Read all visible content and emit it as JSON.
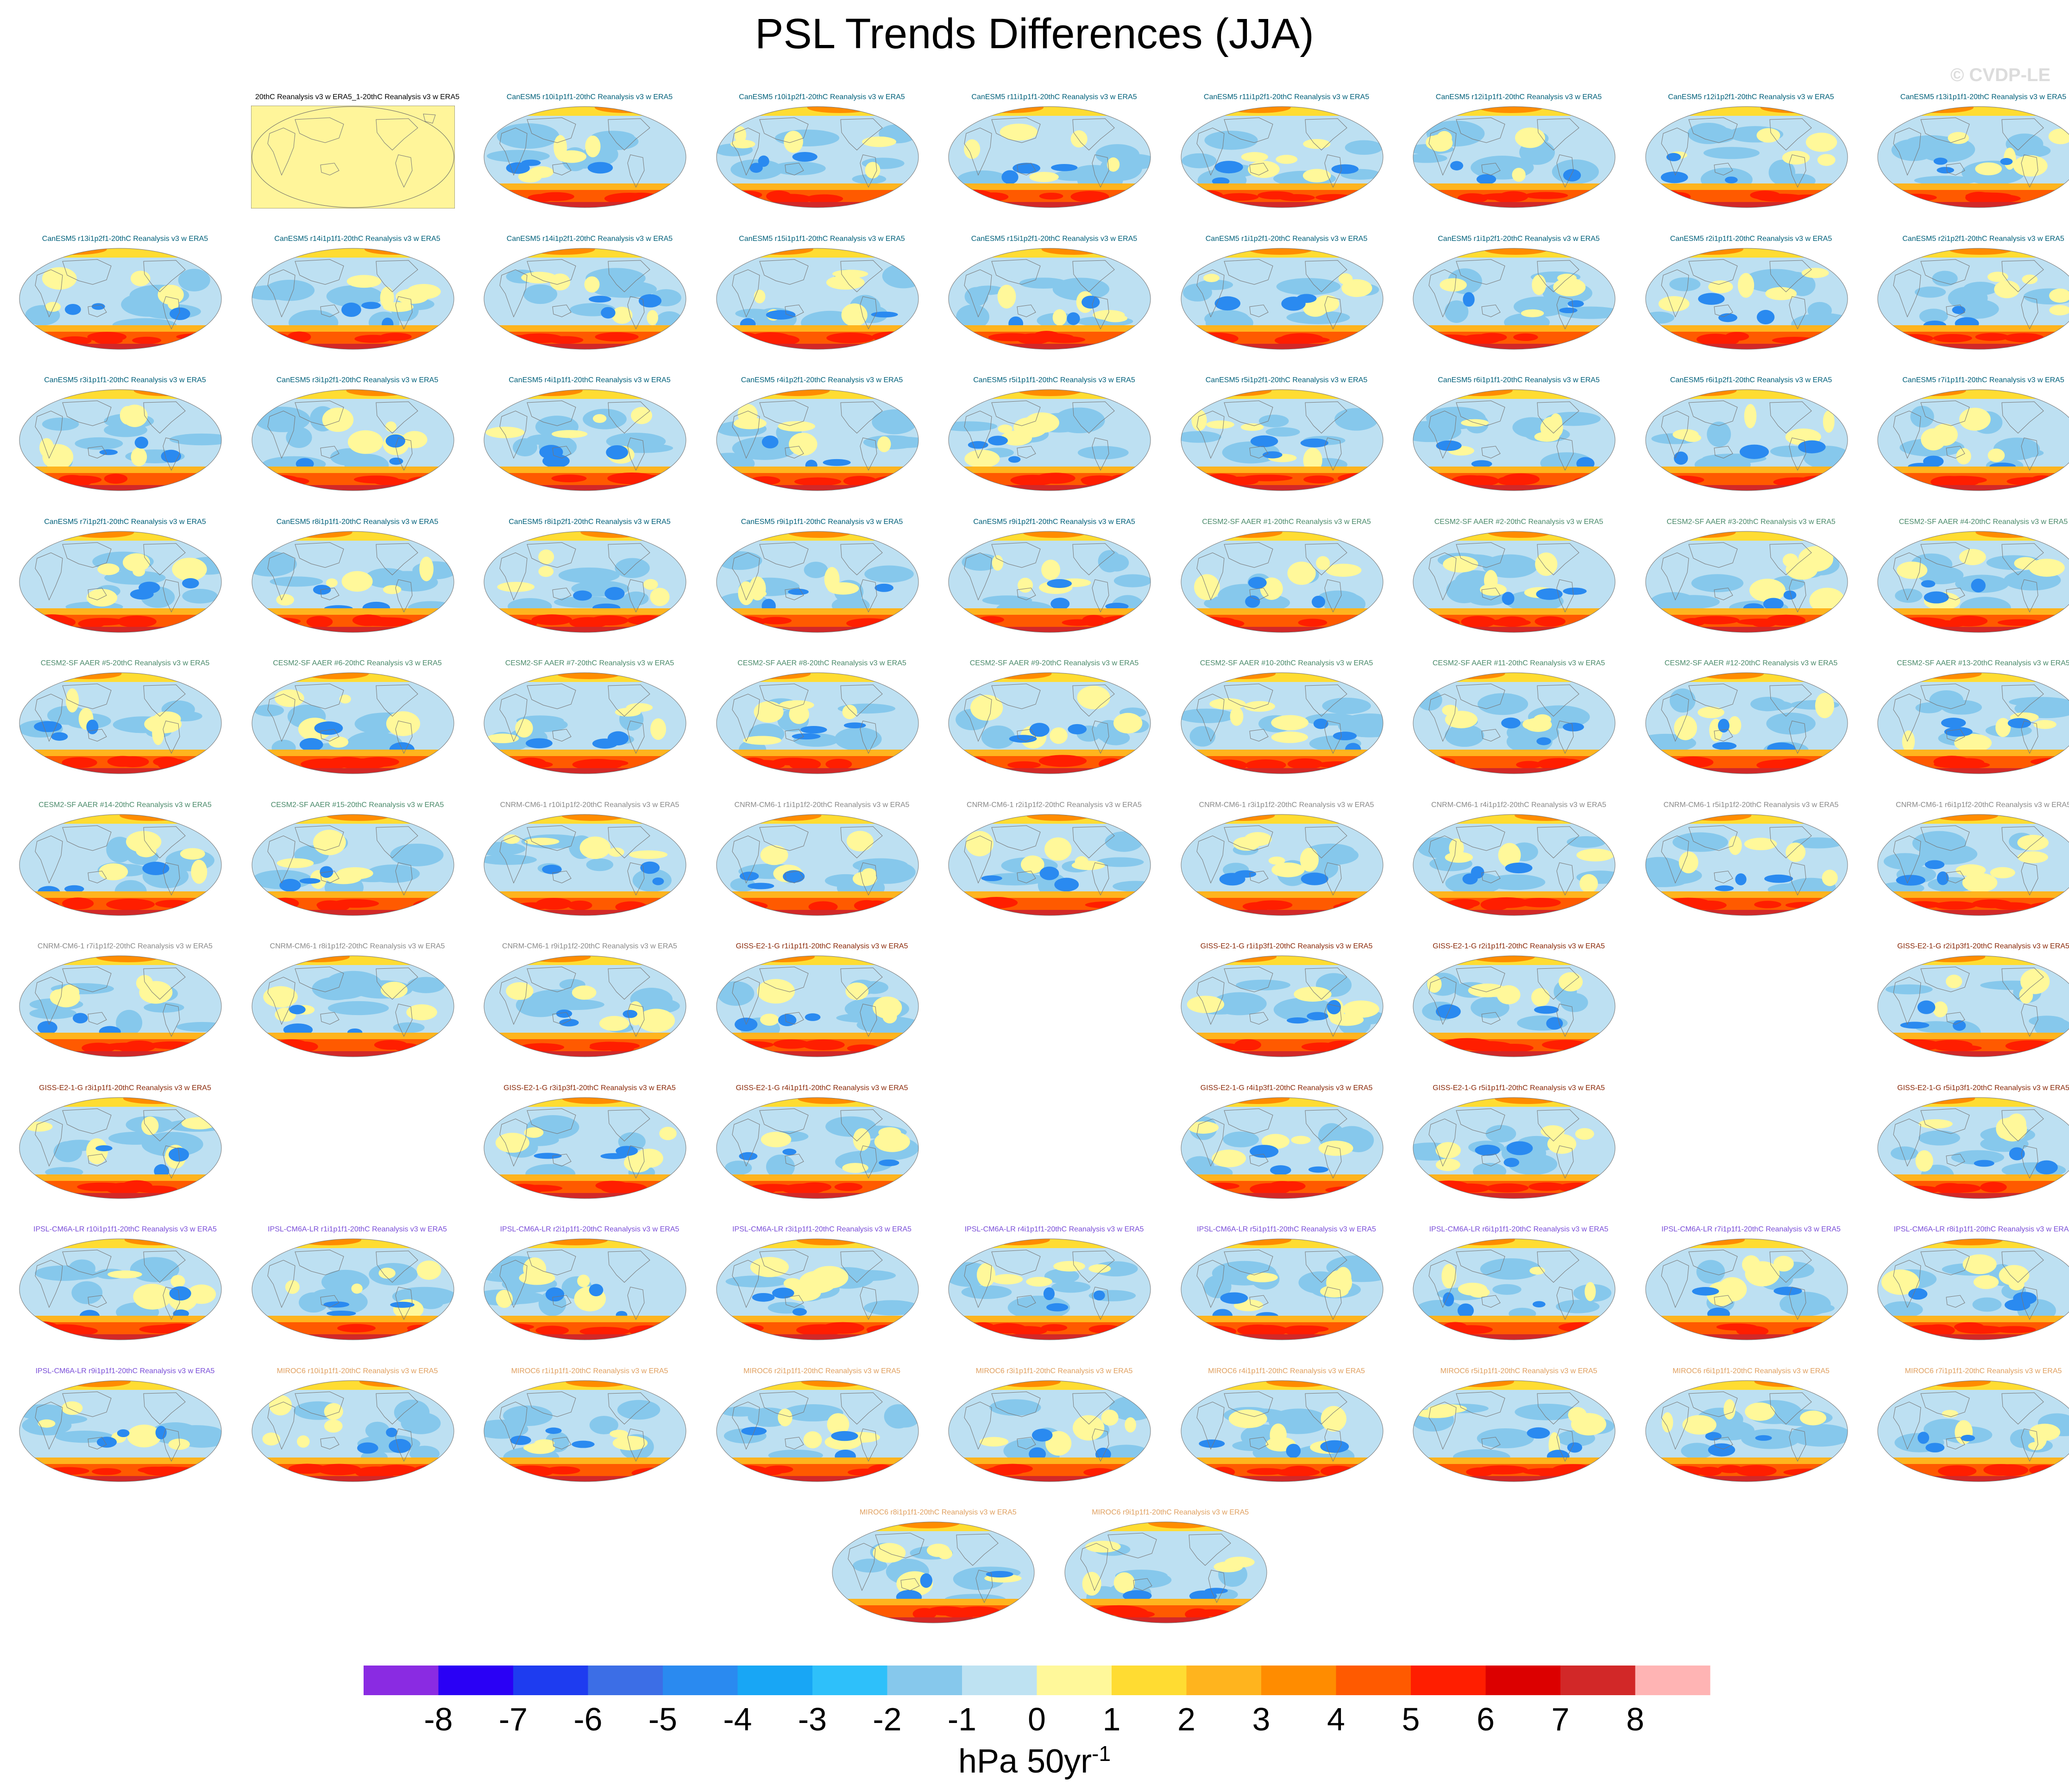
{
  "title": "PSL Trends Differences (JJA)",
  "credit": "© CVDP-LE",
  "colorbar": {
    "units_base": "hPa 50yr",
    "units_exp": "-1",
    "tick_labels": [
      "-8",
      "-7",
      "-6",
      "-5",
      "-4",
      "-3",
      "-2",
      "-1",
      "0",
      "1",
      "2",
      "3",
      "4",
      "5",
      "6",
      "7",
      "8"
    ],
    "colors": [
      "#8a2be2",
      "#2a00f5",
      "#1e3cf0",
      "#3c6ee6",
      "#2a8af0",
      "#18a6f5",
      "#2ec0fa",
      "#86c8ec",
      "#bee2f2",
      "#fff89a",
      "#ffdc32",
      "#ffb41e",
      "#ff8c00",
      "#ff5a00",
      "#ff1e00",
      "#dc0000",
      "#d22828",
      "#ffb4b4"
    ]
  },
  "model_colors": {
    "Reference": "#000000",
    "CanESM5": "#00607a",
    "CESM2-SF": "#4a8a6a",
    "CNRM-CM6-1": "#8a8a8a",
    "GISS-E2-1-G": "#8b2a0a",
    "IPSL-CM6A-LR": "#7a4ed8",
    "MIROC6": "#e0a060"
  },
  "panels": [
    {
      "row": 0,
      "col": 1,
      "model": "Reference",
      "label": "20thC Reanalysis v3 w ERA5_1-20thC Reanalysis v3 w ERA5"
    },
    {
      "row": 0,
      "col": 2,
      "model": "CanESM5",
      "label": "CanESM5 r10i1p1f1-20thC Reanalysis v3 w ERA5"
    },
    {
      "row": 0,
      "col": 3,
      "model": "CanESM5",
      "label": "CanESM5 r10i1p2f1-20thC Reanalysis v3 w ERA5"
    },
    {
      "row": 0,
      "col": 4,
      "model": "CanESM5",
      "label": "CanESM5 r11i1p1f1-20thC Reanalysis v3 w ERA5"
    },
    {
      "row": 0,
      "col": 5,
      "model": "CanESM5",
      "label": "CanESM5 r11i1p2f1-20thC Reanalysis v3 w ERA5"
    },
    {
      "row": 0,
      "col": 6,
      "model": "CanESM5",
      "label": "CanESM5 r12i1p1f1-20thC Reanalysis v3 w ERA5"
    },
    {
      "row": 0,
      "col": 7,
      "model": "CanESM5",
      "label": "CanESM5 r12i1p2f1-20thC Reanalysis v3 w ERA5"
    },
    {
      "row": 0,
      "col": 8,
      "model": "CanESM5",
      "label": "CanESM5 r13i1p1f1-20thC Reanalysis v3 w ERA5"
    },
    {
      "row": 1,
      "col": 0,
      "model": "CanESM5",
      "label": "CanESM5 r13i1p2f1-20thC Reanalysis v3 w ERA5"
    },
    {
      "row": 1,
      "col": 1,
      "model": "CanESM5",
      "label": "CanESM5 r14i1p1f1-20thC Reanalysis v3 w ERA5"
    },
    {
      "row": 1,
      "col": 2,
      "model": "CanESM5",
      "label": "CanESM5 r14i1p2f1-20thC Reanalysis v3 w ERA5"
    },
    {
      "row": 1,
      "col": 3,
      "model": "CanESM5",
      "label": "CanESM5 r15i1p1f1-20thC Reanalysis v3 w ERA5"
    },
    {
      "row": 1,
      "col": 4,
      "model": "CanESM5",
      "label": "CanESM5 r15i1p2f1-20thC Reanalysis v3 w ERA5"
    },
    {
      "row": 1,
      "col": 5,
      "model": "CanESM5",
      "label": "CanESM5 r1i1p2f1-20thC Reanalysis v3 w ERA5"
    },
    {
      "row": 1,
      "col": 6,
      "model": "CanESM5",
      "label": "CanESM5 r1i1p2f1-20thC Reanalysis v3 w ERA5"
    },
    {
      "row": 1,
      "col": 7,
      "model": "CanESM5",
      "label": "CanESM5 r2i1p1f1-20thC Reanalysis v3 w ERA5"
    },
    {
      "row": 1,
      "col": 8,
      "model": "CanESM5",
      "label": "CanESM5 r2i1p2f1-20thC Reanalysis v3 w ERA5"
    },
    {
      "row": 2,
      "col": 0,
      "model": "CanESM5",
      "label": "CanESM5 r3i1p1f1-20thC Reanalysis v3 w ERA5"
    },
    {
      "row": 2,
      "col": 1,
      "model": "CanESM5",
      "label": "CanESM5 r3i1p2f1-20thC Reanalysis v3 w ERA5"
    },
    {
      "row": 2,
      "col": 2,
      "model": "CanESM5",
      "label": "CanESM5 r4i1p1f1-20thC Reanalysis v3 w ERA5"
    },
    {
      "row": 2,
      "col": 3,
      "model": "CanESM5",
      "label": "CanESM5 r4i1p2f1-20thC Reanalysis v3 w ERA5"
    },
    {
      "row": 2,
      "col": 4,
      "model": "CanESM5",
      "label": "CanESM5 r5i1p1f1-20thC Reanalysis v3 w ERA5"
    },
    {
      "row": 2,
      "col": 5,
      "model": "CanESM5",
      "label": "CanESM5 r5i1p2f1-20thC Reanalysis v3 w ERA5"
    },
    {
      "row": 2,
      "col": 6,
      "model": "CanESM5",
      "label": "CanESM5 r6i1p1f1-20thC Reanalysis v3 w ERA5"
    },
    {
      "row": 2,
      "col": 7,
      "model": "CanESM5",
      "label": "CanESM5 r6i1p2f1-20thC Reanalysis v3 w ERA5"
    },
    {
      "row": 2,
      "col": 8,
      "model": "CanESM5",
      "label": "CanESM5 r7i1p1f1-20thC Reanalysis v3 w ERA5"
    },
    {
      "row": 3,
      "col": 0,
      "model": "CanESM5",
      "label": "CanESM5 r7i1p2f1-20thC Reanalysis v3 w ERA5"
    },
    {
      "row": 3,
      "col": 1,
      "model": "CanESM5",
      "label": "CanESM5 r8i1p1f1-20thC Reanalysis v3 w ERA5"
    },
    {
      "row": 3,
      "col": 2,
      "model": "CanESM5",
      "label": "CanESM5 r8i1p2f1-20thC Reanalysis v3 w ERA5"
    },
    {
      "row": 3,
      "col": 3,
      "model": "CanESM5",
      "label": "CanESM5 r9i1p1f1-20thC Reanalysis v3 w ERA5"
    },
    {
      "row": 3,
      "col": 4,
      "model": "CanESM5",
      "label": "CanESM5 r9i1p2f1-20thC Reanalysis v3 w ERA5"
    },
    {
      "row": 3,
      "col": 5,
      "model": "CESM2-SF",
      "label": "CESM2-SF AAER #1-20thC Reanalysis v3 w ERA5"
    },
    {
      "row": 3,
      "col": 6,
      "model": "CESM2-SF",
      "label": "CESM2-SF AAER #2-20thC Reanalysis v3 w ERA5"
    },
    {
      "row": 3,
      "col": 7,
      "model": "CESM2-SF",
      "label": "CESM2-SF AAER #3-20thC Reanalysis v3 w ERA5"
    },
    {
      "row": 3,
      "col": 8,
      "model": "CESM2-SF",
      "label": "CESM2-SF AAER #4-20thC Reanalysis v3 w ERA5"
    },
    {
      "row": 4,
      "col": 0,
      "model": "CESM2-SF",
      "label": "CESM2-SF AAER #5-20thC Reanalysis v3 w ERA5"
    },
    {
      "row": 4,
      "col": 1,
      "model": "CESM2-SF",
      "label": "CESM2-SF AAER #6-20thC Reanalysis v3 w ERA5"
    },
    {
      "row": 4,
      "col": 2,
      "model": "CESM2-SF",
      "label": "CESM2-SF AAER #7-20thC Reanalysis v3 w ERA5"
    },
    {
      "row": 4,
      "col": 3,
      "model": "CESM2-SF",
      "label": "CESM2-SF AAER #8-20thC Reanalysis v3 w ERA5"
    },
    {
      "row": 4,
      "col": 4,
      "model": "CESM2-SF",
      "label": "CESM2-SF AAER #9-20thC Reanalysis v3 w ERA5"
    },
    {
      "row": 4,
      "col": 5,
      "model": "CESM2-SF",
      "label": "CESM2-SF AAER #10-20thC Reanalysis v3 w ERA5"
    },
    {
      "row": 4,
      "col": 6,
      "model": "CESM2-SF",
      "label": "CESM2-SF AAER #11-20thC Reanalysis v3 w ERA5"
    },
    {
      "row": 4,
      "col": 7,
      "model": "CESM2-SF",
      "label": "CESM2-SF AAER #12-20thC Reanalysis v3 w ERA5"
    },
    {
      "row": 4,
      "col": 8,
      "model": "CESM2-SF",
      "label": "CESM2-SF AAER #13-20thC Reanalysis v3 w ERA5"
    },
    {
      "row": 5,
      "col": 0,
      "model": "CESM2-SF",
      "label": "CESM2-SF AAER #14-20thC Reanalysis v3 w ERA5"
    },
    {
      "row": 5,
      "col": 1,
      "model": "CESM2-SF",
      "label": "CESM2-SF AAER #15-20thC Reanalysis v3 w ERA5"
    },
    {
      "row": 5,
      "col": 2,
      "model": "CNRM-CM6-1",
      "label": "CNRM-CM6-1 r10i1p1f2-20thC Reanalysis v3 w ERA5"
    },
    {
      "row": 5,
      "col": 3,
      "model": "CNRM-CM6-1",
      "label": "CNRM-CM6-1 r1i1p1f2-20thC Reanalysis v3 w ERA5"
    },
    {
      "row": 5,
      "col": 4,
      "model": "CNRM-CM6-1",
      "label": "CNRM-CM6-1 r2i1p1f2-20thC Reanalysis v3 w ERA5"
    },
    {
      "row": 5,
      "col": 5,
      "model": "CNRM-CM6-1",
      "label": "CNRM-CM6-1 r3i1p1f2-20thC Reanalysis v3 w ERA5"
    },
    {
      "row": 5,
      "col": 6,
      "model": "CNRM-CM6-1",
      "label": "CNRM-CM6-1 r4i1p1f2-20thC Reanalysis v3 w ERA5"
    },
    {
      "row": 5,
      "col": 7,
      "model": "CNRM-CM6-1",
      "label": "CNRM-CM6-1 r5i1p1f2-20thC Reanalysis v3 w ERA5"
    },
    {
      "row": 5,
      "col": 8,
      "model": "CNRM-CM6-1",
      "label": "CNRM-CM6-1 r6i1p1f2-20thC Reanalysis v3 w ERA5"
    },
    {
      "row": 6,
      "col": 0,
      "model": "CNRM-CM6-1",
      "label": "CNRM-CM6-1 r7i1p1f2-20thC Reanalysis v3 w ERA5"
    },
    {
      "row": 6,
      "col": 1,
      "model": "CNRM-CM6-1",
      "label": "CNRM-CM6-1 r8i1p1f2-20thC Reanalysis v3 w ERA5"
    },
    {
      "row": 6,
      "col": 2,
      "model": "CNRM-CM6-1",
      "label": "CNRM-CM6-1 r9i1p1f2-20thC Reanalysis v3 w ERA5"
    },
    {
      "row": 6,
      "col": 3,
      "model": "GISS-E2-1-G",
      "label": "GISS-E2-1-G r1i1p1f1-20thC Reanalysis v3 w ERA5"
    },
    {
      "row": 6,
      "col": 5,
      "model": "GISS-E2-1-G",
      "label": "GISS-E2-1-G r1i1p3f1-20thC Reanalysis v3 w ERA5"
    },
    {
      "row": 6,
      "col": 6,
      "model": "GISS-E2-1-G",
      "label": "GISS-E2-1-G r2i1p1f1-20thC Reanalysis v3 w ERA5"
    },
    {
      "row": 6,
      "col": 8,
      "model": "GISS-E2-1-G",
      "label": "GISS-E2-1-G r2i1p3f1-20thC Reanalysis v3 w ERA5"
    },
    {
      "row": 7,
      "col": 0,
      "model": "GISS-E2-1-G",
      "label": "GISS-E2-1-G r3i1p1f1-20thC Reanalysis v3 w ERA5"
    },
    {
      "row": 7,
      "col": 2,
      "model": "GISS-E2-1-G",
      "label": "GISS-E2-1-G r3i1p3f1-20thC Reanalysis v3 w ERA5"
    },
    {
      "row": 7,
      "col": 3,
      "model": "GISS-E2-1-G",
      "label": "GISS-E2-1-G r4i1p1f1-20thC Reanalysis v3 w ERA5"
    },
    {
      "row": 7,
      "col": 5,
      "model": "GISS-E2-1-G",
      "label": "GISS-E2-1-G r4i1p3f1-20thC Reanalysis v3 w ERA5"
    },
    {
      "row": 7,
      "col": 6,
      "model": "GISS-E2-1-G",
      "label": "GISS-E2-1-G r5i1p1f1-20thC Reanalysis v3 w ERA5"
    },
    {
      "row": 7,
      "col": 8,
      "model": "GISS-E2-1-G",
      "label": "GISS-E2-1-G r5i1p3f1-20thC Reanalysis v3 w ERA5"
    },
    {
      "row": 8,
      "col": 0,
      "model": "IPSL-CM6A-LR",
      "label": "IPSL-CM6A-LR r10i1p1f1-20thC Reanalysis v3 w ERA5"
    },
    {
      "row": 8,
      "col": 1,
      "model": "IPSL-CM6A-LR",
      "label": "IPSL-CM6A-LR r1i1p1f1-20thC Reanalysis v3 w ERA5"
    },
    {
      "row": 8,
      "col": 2,
      "model": "IPSL-CM6A-LR",
      "label": "IPSL-CM6A-LR r2i1p1f1-20thC Reanalysis v3 w ERA5"
    },
    {
      "row": 8,
      "col": 3,
      "model": "IPSL-CM6A-LR",
      "label": "IPSL-CM6A-LR r3i1p1f1-20thC Reanalysis v3 w ERA5"
    },
    {
      "row": 8,
      "col": 4,
      "model": "IPSL-CM6A-LR",
      "label": "IPSL-CM6A-LR r4i1p1f1-20thC Reanalysis v3 w ERA5"
    },
    {
      "row": 8,
      "col": 5,
      "model": "IPSL-CM6A-LR",
      "label": "IPSL-CM6A-LR r5i1p1f1-20thC Reanalysis v3 w ERA5"
    },
    {
      "row": 8,
      "col": 6,
      "model": "IPSL-CM6A-LR",
      "label": "IPSL-CM6A-LR r6i1p1f1-20thC Reanalysis v3 w ERA5"
    },
    {
      "row": 8,
      "col": 7,
      "model": "IPSL-CM6A-LR",
      "label": "IPSL-CM6A-LR r7i1p1f1-20thC Reanalysis v3 w ERA5"
    },
    {
      "row": 8,
      "col": 8,
      "model": "IPSL-CM6A-LR",
      "label": "IPSL-CM6A-LR r8i1p1f1-20thC Reanalysis v3 w ERA5"
    },
    {
      "row": 9,
      "col": 0,
      "model": "IPSL-CM6A-LR",
      "label": "IPSL-CM6A-LR r9i1p1f1-20thC Reanalysis v3 w ERA5"
    },
    {
      "row": 9,
      "col": 1,
      "model": "MIROC6",
      "label": "MIROC6 r10i1p1f1-20thC Reanalysis v3 w ERA5"
    },
    {
      "row": 9,
      "col": 2,
      "model": "MIROC6",
      "label": "MIROC6 r1i1p1f1-20thC Reanalysis v3 w ERA5"
    },
    {
      "row": 9,
      "col": 3,
      "model": "MIROC6",
      "label": "MIROC6 r2i1p1f1-20thC Reanalysis v3 w ERA5"
    },
    {
      "row": 9,
      "col": 4,
      "model": "MIROC6",
      "label": "MIROC6 r3i1p1f1-20thC Reanalysis v3 w ERA5"
    },
    {
      "row": 9,
      "col": 5,
      "model": "MIROC6",
      "label": "MIROC6 r4i1p1f1-20thC Reanalysis v3 w ERA5"
    },
    {
      "row": 9,
      "col": 6,
      "model": "MIROC6",
      "label": "MIROC6 r5i1p1f1-20thC Reanalysis v3 w ERA5"
    },
    {
      "row": 9,
      "col": 7,
      "model": "MIROC6",
      "label": "MIROC6 r6i1p1f1-20thC Reanalysis v3 w ERA5"
    },
    {
      "row": 9,
      "col": 8,
      "model": "MIROC6",
      "label": "MIROC6 r7i1p1f1-20thC Reanalysis v3 w ERA5"
    },
    {
      "row": 10,
      "col": 3.5,
      "model": "MIROC6",
      "label": "MIROC6 r8i1p1f1-20thC Reanalysis v3 w ERA5"
    },
    {
      "row": 10,
      "col": 4.5,
      "model": "MIROC6",
      "label": "MIROC6 r9i1p1f1-20thC Reanalysis v3 w ERA5"
    }
  ]
}
